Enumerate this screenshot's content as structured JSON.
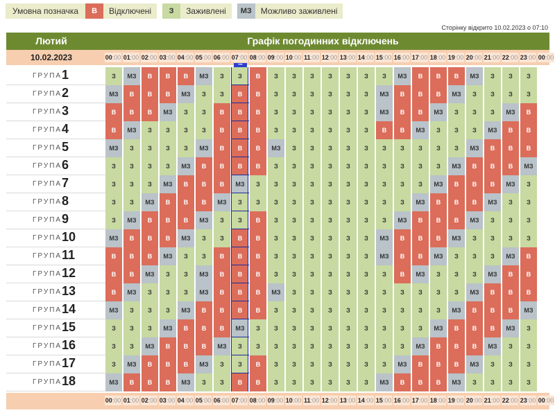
{
  "legend": {
    "label": "Умовна позначка",
    "items": [
      {
        "code": "В",
        "text": "Відключені",
        "color": "#db6d5a"
      },
      {
        "code": "З",
        "text": "Заживлені",
        "color": "#c8d9a1"
      },
      {
        "code": "МЗ",
        "text": "Можливо заживлені",
        "color": "#b9c3c9"
      }
    ]
  },
  "opened_text": "Сторінку відкрито 10.02.2023 о 07:10",
  "header": {
    "month": "Лютий",
    "title": "Графік погодинних відключень",
    "date": "10.02.2023"
  },
  "now_marker": "•••",
  "group_word": "ГРУПА",
  "hours": [
    "00",
    "01",
    "02",
    "03",
    "04",
    "05",
    "06",
    "07",
    "08",
    "09",
    "10",
    "11",
    "12",
    "13",
    "14",
    "15",
    "16",
    "17",
    "18",
    "19",
    "20",
    "21",
    "22",
    "23",
    "00"
  ],
  "minutes_suffix": ":00",
  "groups": [
    {
      "num": "1",
      "cells": [
        "З",
        "МЗ",
        "В",
        "В",
        "В",
        "МЗ",
        "З",
        "З",
        "В",
        "З",
        "З",
        "З",
        "З",
        "З",
        "З",
        "З",
        "МЗ",
        "В",
        "В",
        "В",
        "МЗ",
        "З",
        "З",
        "З"
      ]
    },
    {
      "num": "2",
      "cells": [
        "МЗ",
        "В",
        "В",
        "В",
        "МЗ",
        "З",
        "З",
        "В",
        "В",
        "З",
        "З",
        "З",
        "З",
        "З",
        "З",
        "МЗ",
        "В",
        "В",
        "В",
        "МЗ",
        "З",
        "З",
        "З",
        "З"
      ]
    },
    {
      "num": "3",
      "cells": [
        "В",
        "В",
        "В",
        "МЗ",
        "З",
        "З",
        "В",
        "В",
        "В",
        "З",
        "З",
        "З",
        "З",
        "З",
        "З",
        "МЗ",
        "В",
        "В",
        "МЗ",
        "З",
        "З",
        "З",
        "МЗ",
        "В"
      ]
    },
    {
      "num": "4",
      "cells": [
        "В",
        "МЗ",
        "З",
        "З",
        "З",
        "З",
        "В",
        "В",
        "В",
        "З",
        "З",
        "З",
        "З",
        "З",
        "З",
        "В",
        "В",
        "МЗ",
        "З",
        "З",
        "З",
        "МЗ",
        "В",
        "В"
      ]
    },
    {
      "num": "5",
      "cells": [
        "МЗ",
        "З",
        "З",
        "З",
        "З",
        "МЗ",
        "В",
        "В",
        "В",
        "МЗ",
        "З",
        "З",
        "З",
        "З",
        "З",
        "З",
        "З",
        "З",
        "З",
        "З",
        "МЗ",
        "В",
        "В",
        "В"
      ]
    },
    {
      "num": "6",
      "cells": [
        "З",
        "З",
        "З",
        "З",
        "МЗ",
        "В",
        "В",
        "В",
        "В",
        "З",
        "З",
        "З",
        "З",
        "З",
        "З",
        "З",
        "З",
        "З",
        "З",
        "МЗ",
        "В",
        "В",
        "В",
        "МЗ"
      ]
    },
    {
      "num": "7",
      "cells": [
        "З",
        "З",
        "З",
        "МЗ",
        "В",
        "В",
        "В",
        "МЗ",
        "З",
        "З",
        "З",
        "З",
        "З",
        "З",
        "З",
        "З",
        "З",
        "З",
        "МЗ",
        "В",
        "В",
        "В",
        "МЗ",
        "З"
      ]
    },
    {
      "num": "8",
      "cells": [
        "З",
        "З",
        "МЗ",
        "В",
        "В",
        "В",
        "МЗ",
        "З",
        "З",
        "З",
        "З",
        "З",
        "З",
        "З",
        "З",
        "З",
        "З",
        "МЗ",
        "В",
        "В",
        "В",
        "МЗ",
        "З",
        "З"
      ]
    },
    {
      "num": "9",
      "cells": [
        "З",
        "МЗ",
        "В",
        "В",
        "В",
        "МЗ",
        "З",
        "З",
        "В",
        "З",
        "З",
        "З",
        "З",
        "З",
        "З",
        "З",
        "МЗ",
        "В",
        "В",
        "В",
        "МЗ",
        "З",
        "З",
        "З"
      ]
    },
    {
      "num": "10",
      "cells": [
        "МЗ",
        "В",
        "В",
        "В",
        "МЗ",
        "З",
        "З",
        "В",
        "В",
        "З",
        "З",
        "З",
        "З",
        "З",
        "З",
        "МЗ",
        "В",
        "В",
        "В",
        "МЗ",
        "З",
        "З",
        "З",
        "З"
      ]
    },
    {
      "num": "11",
      "cells": [
        "В",
        "В",
        "В",
        "МЗ",
        "З",
        "З",
        "В",
        "В",
        "В",
        "З",
        "З",
        "З",
        "З",
        "З",
        "З",
        "МЗ",
        "В",
        "В",
        "МЗ",
        "З",
        "З",
        "З",
        "МЗ",
        "В"
      ]
    },
    {
      "num": "12",
      "cells": [
        "В",
        "В",
        "МЗ",
        "З",
        "З",
        "МЗ",
        "В",
        "В",
        "В",
        "З",
        "З",
        "З",
        "З",
        "З",
        "З",
        "З",
        "В",
        "МЗ",
        "З",
        "З",
        "З",
        "МЗ",
        "В",
        "В"
      ]
    },
    {
      "num": "13",
      "cells": [
        "В",
        "МЗ",
        "З",
        "З",
        "З",
        "МЗ",
        "В",
        "В",
        "В",
        "МЗ",
        "З",
        "З",
        "З",
        "З",
        "З",
        "З",
        "З",
        "З",
        "З",
        "З",
        "МЗ",
        "В",
        "В",
        "В"
      ]
    },
    {
      "num": "14",
      "cells": [
        "МЗ",
        "З",
        "З",
        "З",
        "МЗ",
        "В",
        "В",
        "В",
        "В",
        "З",
        "З",
        "З",
        "З",
        "З",
        "З",
        "З",
        "З",
        "З",
        "З",
        "МЗ",
        "В",
        "В",
        "В",
        "МЗ"
      ]
    },
    {
      "num": "15",
      "cells": [
        "З",
        "З",
        "З",
        "МЗ",
        "В",
        "В",
        "В",
        "МЗ",
        "З",
        "З",
        "З",
        "З",
        "З",
        "З",
        "З",
        "З",
        "З",
        "З",
        "МЗ",
        "В",
        "В",
        "В",
        "МЗ",
        "З"
      ]
    },
    {
      "num": "16",
      "cells": [
        "З",
        "З",
        "МЗ",
        "В",
        "В",
        "В",
        "МЗ",
        "З",
        "З",
        "З",
        "З",
        "З",
        "З",
        "З",
        "З",
        "З",
        "З",
        "МЗ",
        "В",
        "В",
        "В",
        "МЗ",
        "З",
        "З"
      ]
    },
    {
      "num": "17",
      "cells": [
        "З",
        "МЗ",
        "В",
        "В",
        "В",
        "МЗ",
        "З",
        "З",
        "В",
        "З",
        "З",
        "З",
        "З",
        "З",
        "З",
        "З",
        "МЗ",
        "В",
        "В",
        "В",
        "МЗ",
        "З",
        "З",
        "З"
      ]
    },
    {
      "num": "18",
      "cells": [
        "МЗ",
        "В",
        "В",
        "В",
        "МЗ",
        "З",
        "З",
        "В",
        "В",
        "З",
        "З",
        "З",
        "З",
        "З",
        "З",
        "МЗ",
        "В",
        "В",
        "В",
        "МЗ",
        "З",
        "З",
        "З",
        "З"
      ]
    }
  ]
}
